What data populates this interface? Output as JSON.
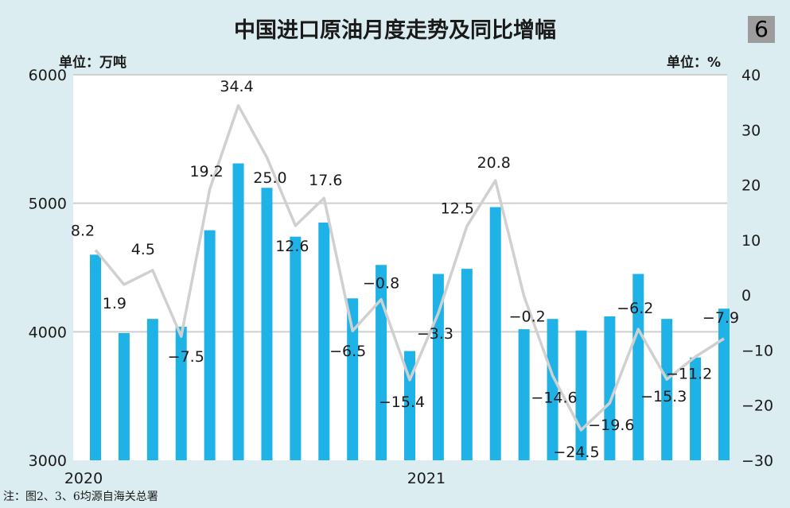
{
  "header": {
    "title": "中国进口原油月度走势及同比增幅",
    "badge": "6",
    "unit_left": "单位：万吨",
    "unit_right": "单位：%"
  },
  "footer": {
    "note": "注：图2、3、6均源自海关总署"
  },
  "colors": {
    "background": "#dcedf1",
    "plot_background": "#ffffff",
    "bar": "#1fb2e6",
    "line": "#d0d0d0",
    "grid": "#cfcfcf"
  },
  "chart_data": {
    "type": "bar",
    "title": "中国进口原油月度走势及同比增幅",
    "x_labels": [
      "2020",
      "2021"
    ],
    "left_axis": {
      "ylim": [
        3000,
        6000
      ],
      "ticks": [
        3000,
        4000,
        5000,
        6000
      ],
      "label": "单位：万吨"
    },
    "right_axis": {
      "ylim": [
        -30,
        40
      ],
      "ticks": [
        -30,
        -20,
        -10,
        0,
        10,
        20,
        30,
        40
      ],
      "label": "单位：%"
    },
    "grid": "horizontal",
    "series": [
      {
        "type": "bar",
        "axis": "left",
        "values": [
          4600,
          3990,
          4100,
          4040,
          4790,
          5310,
          5120,
          4740,
          4850,
          4260,
          4520,
          3850,
          4450,
          4490,
          4970,
          4020,
          4100,
          4010,
          4120,
          4450,
          4100,
          3800,
          4180
        ]
      },
      {
        "type": "line",
        "axis": "right",
        "values": [
          8.2,
          1.9,
          4.5,
          -7.5,
          19.2,
          34.4,
          25.0,
          12.6,
          17.6,
          -6.5,
          -0.8,
          -15.4,
          -3.3,
          12.5,
          20.8,
          -0.2,
          -14.6,
          -24.5,
          -19.6,
          -6.2,
          -15.3,
          -11.2,
          -7.9
        ],
        "labels": [
          "8.2",
          "1.9",
          "4.5",
          "−7.5",
          "19.2",
          "34.4",
          "25.0",
          "12.6",
          "17.6",
          "−6.5",
          "−0.8",
          "−15.4",
          "−3.3",
          "12.5",
          "20.8",
          "−0.2",
          "−14.6",
          "−24.5",
          "−19.6",
          "−6.2",
          "−15.3",
          "−11.2",
          "−7.9"
        ]
      }
    ]
  }
}
